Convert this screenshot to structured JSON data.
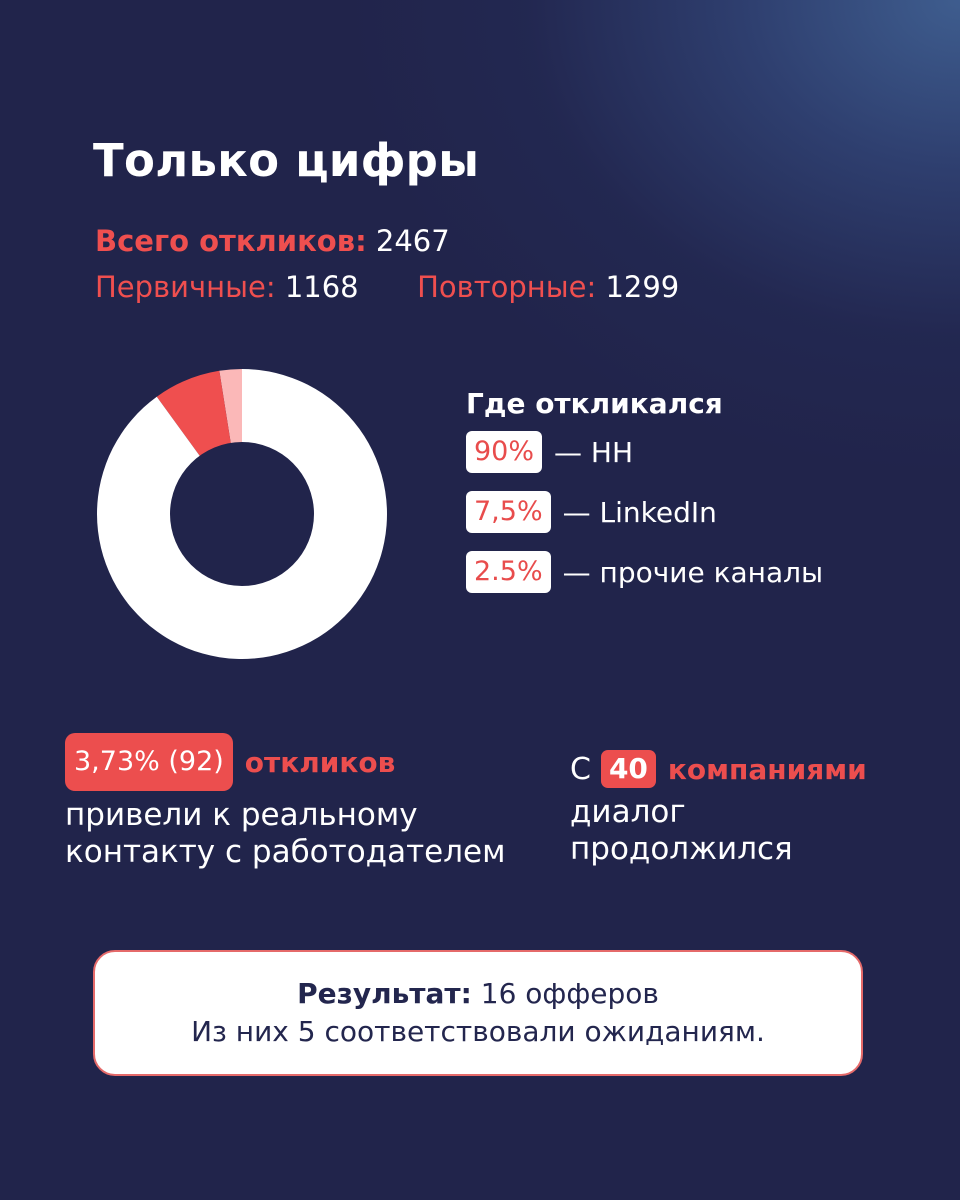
{
  "header": {
    "title": "Только цифры"
  },
  "totals": {
    "total_label": "Всего откликов:",
    "total_value": "2467",
    "primary_label": "Первичные:",
    "primary_value": "1168",
    "repeat_label": "Повторные:",
    "repeat_value": "1299"
  },
  "legend": {
    "title": "Где откликался",
    "items": [
      {
        "badge": "90%",
        "label": "— HH"
      },
      {
        "badge": "7,5%",
        "label": "— LinkedIn"
      },
      {
        "badge": "2.5%",
        "label": "— прочие каналы"
      }
    ]
  },
  "stats": {
    "contacts_badge": "3,73% (92)",
    "contacts_accent": "откликов",
    "contacts_line1": "привели к реальному",
    "contacts_line2": "контакту с работодателем",
    "companies_prefix": "С",
    "companies_badge": "40",
    "companies_accent": "компаниями",
    "companies_line1": "диалог",
    "companies_line2": "продолжился"
  },
  "result": {
    "label": "Результат:",
    "value": "16 офферов",
    "line2": "Из них 5 соответствовали ожиданиям."
  },
  "colors": {
    "background": "#21244b",
    "accent_red": "#ec4e4e",
    "accent_pink": "#fbb8b8",
    "white": "#ffffff",
    "text_dark": "#23264e"
  },
  "chart_data": {
    "type": "pie",
    "variant": "donut",
    "title": "Где откликался",
    "categories": [
      "HH",
      "LinkedIn",
      "прочие каналы"
    ],
    "values": [
      90,
      7.5,
      2.5
    ],
    "unit": "%",
    "colors": [
      "#ffffff",
      "#ef4f4f",
      "#fbb8b8"
    ],
    "legend_position": "right",
    "start_angle": "top, counter-clockwise from 12 o'clock for minor slices"
  }
}
